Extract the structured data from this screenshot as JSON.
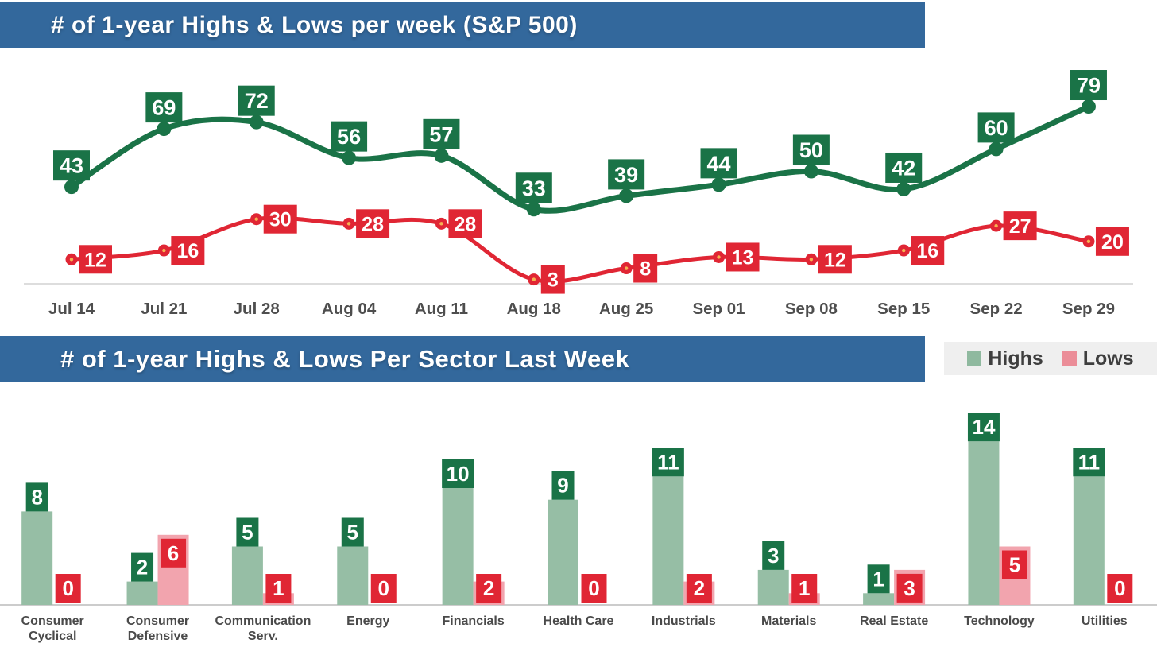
{
  "header1": {
    "title": "# of 1-year Highs & Lows per week (S&P 500)"
  },
  "header2": {
    "title": "# of 1-year Highs & Lows Per Sector Last Week"
  },
  "legend": {
    "highs_label": "Highs",
    "lows_label": "Lows"
  },
  "colors": {
    "header_blue": "#33689C",
    "line_green": "#1A7347",
    "line_red": "#E02634",
    "red_marker_dot": "#F6B352",
    "bar_green": "#96BEA5",
    "bar_pink": "#F2A4AE",
    "legend_green": "#8FB99F",
    "legend_pink": "#EB8D98",
    "legend_bg": "#EFEFEF",
    "label_text_white": "#FFFFFF",
    "axis_gray_line_chart": "#DDDDDD",
    "axis_gray_bar_chart": "#CCCCCC",
    "tick_text_gray": "#4E4E4E",
    "category_text_gray": "#4A4A4A"
  },
  "chart_data": [
    {
      "type": "line",
      "title": "# of 1-year Highs & Lows per week (S&P 500)",
      "categories": [
        "Jul 14",
        "Jul 21",
        "Jul 28",
        "Aug 04",
        "Aug 11",
        "Aug 18",
        "Aug 25",
        "Sep 01",
        "Sep 08",
        "Sep 15",
        "Sep 22",
        "Sep 29"
      ],
      "series": [
        {
          "name": "Highs",
          "color": "#1A7347",
          "values": [
            43,
            69,
            72,
            56,
            57,
            33,
            39,
            44,
            50,
            42,
            60,
            79
          ]
        },
        {
          "name": "Lows",
          "color": "#E02634",
          "values": [
            12,
            16,
            30,
            28,
            28,
            3,
            8,
            13,
            12,
            16,
            27,
            20
          ]
        }
      ],
      "xlabel": "",
      "ylabel": "",
      "ylim": [
        0,
        105
      ],
      "grid": false,
      "data_labels": true,
      "legend_position": "none"
    },
    {
      "type": "bar",
      "title": "# of 1-year Highs & Lows Per Sector Last Week",
      "categories": [
        "Consumer Cyclical",
        "Consumer Defensive",
        "Communication Serv.",
        "Energy",
        "Financials",
        "Health Care",
        "Industrials",
        "Materials",
        "Real Estate",
        "Technology",
        "Utilities"
      ],
      "category_label_lines": [
        [
          "Consumer",
          "Cyclical"
        ],
        [
          "Consumer",
          "Defensive"
        ],
        [
          "Communication",
          "Serv."
        ],
        [
          "Energy"
        ],
        [
          "Financials"
        ],
        [
          "Health Care"
        ],
        [
          "Industrials"
        ],
        [
          "Materials"
        ],
        [
          "Real Estate"
        ],
        [
          "Technology"
        ],
        [
          "Utilities"
        ]
      ],
      "series": [
        {
          "name": "Highs",
          "color": "#96BEA5",
          "values": [
            8,
            2,
            5,
            5,
            10,
            9,
            11,
            3,
            1,
            14,
            11
          ]
        },
        {
          "name": "Lows",
          "color": "#F2A4AE",
          "values": [
            0,
            6,
            1,
            0,
            2,
            0,
            2,
            1,
            3,
            5,
            0
          ]
        }
      ],
      "xlabel": "",
      "ylabel": "",
      "ylim": [
        0,
        15
      ],
      "grid": false,
      "data_labels": true,
      "legend_position": "top-right"
    }
  ]
}
